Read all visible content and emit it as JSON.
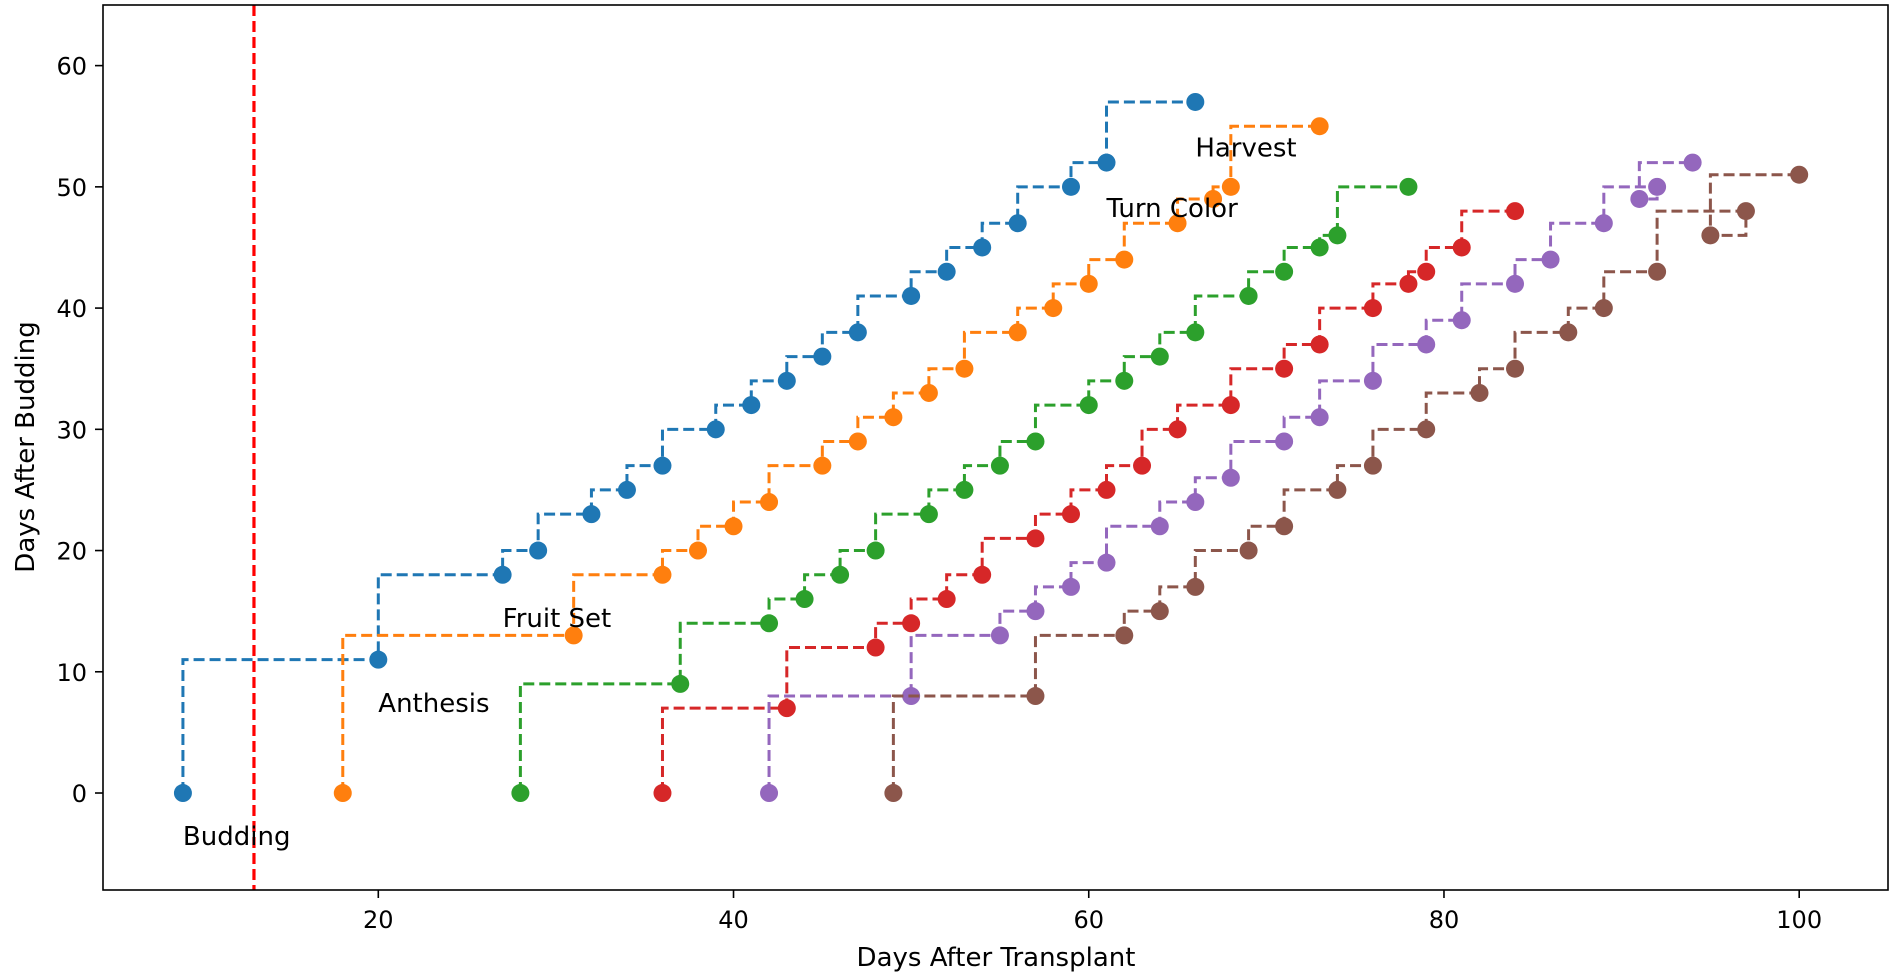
{
  "chart_data": {
    "type": "line",
    "style": "step-post dashed with circle markers",
    "xlabel": "Days After Transplant",
    "ylabel": "Days After Budding",
    "xlim": [
      4.5,
      105
    ],
    "ylim": [
      -8,
      65
    ],
    "xticks": [
      20,
      40,
      60,
      80,
      100
    ],
    "yticks": [
      0,
      10,
      20,
      30,
      40,
      50,
      60
    ],
    "grid": false,
    "legend": "none",
    "vline": {
      "x": 13,
      "color": "#ff0000",
      "style": "dashed"
    },
    "annotations": [
      {
        "text": "Budding",
        "x": 9,
        "y": -4.3
      },
      {
        "text": "Anthesis",
        "x": 20,
        "y": 6.7
      },
      {
        "text": "Fruit Set",
        "x": 27,
        "y": 13.7
      },
      {
        "text": "Turn Color",
        "x": 61,
        "y": 47.5
      },
      {
        "text": "Harvest",
        "x": 66,
        "y": 52.5
      }
    ],
    "series": [
      {
        "color": "#1f77b4",
        "x": [
          9,
          20,
          27,
          29,
          32,
          34,
          36,
          39,
          41,
          43,
          45,
          47,
          50,
          52,
          54,
          56,
          59,
          61,
          66
        ],
        "y": [
          0,
          11,
          18,
          20,
          23,
          25,
          27,
          30,
          32,
          34,
          36,
          38,
          41,
          43,
          45,
          47,
          50,
          52,
          57
        ]
      },
      {
        "color": "#ff7f0e",
        "x": [
          18,
          31,
          36,
          38,
          40,
          42,
          45,
          47,
          49,
          51,
          53,
          56,
          58,
          60,
          62,
          65,
          67,
          68,
          73
        ],
        "y": [
          0,
          13,
          18,
          20,
          22,
          24,
          27,
          29,
          31,
          33,
          35,
          38,
          40,
          42,
          44,
          47,
          49,
          50,
          55
        ]
      },
      {
        "color": "#2ca02c",
        "x": [
          28,
          37,
          42,
          44,
          46,
          48,
          51,
          53,
          55,
          57,
          60,
          62,
          64,
          66,
          69,
          71,
          73,
          74,
          78
        ],
        "y": [
          0,
          9,
          14,
          16,
          18,
          20,
          23,
          25,
          27,
          29,
          32,
          34,
          36,
          38,
          41,
          43,
          45,
          46,
          50
        ]
      },
      {
        "color": "#d62728",
        "x": [
          36,
          43,
          48,
          50,
          52,
          54,
          57,
          59,
          61,
          63,
          65,
          68,
          71,
          73,
          76,
          78,
          79,
          81,
          84
        ],
        "y": [
          0,
          7,
          12,
          14,
          16,
          18,
          21,
          23,
          25,
          27,
          30,
          32,
          35,
          37,
          40,
          42,
          43,
          45,
          48
        ]
      },
      {
        "color": "#9467bd",
        "x": [
          42,
          50,
          55,
          57,
          59,
          61,
          64,
          66,
          68,
          71,
          73,
          76,
          79,
          81,
          84,
          86,
          89,
          92,
          91,
          94
        ],
        "y": [
          0,
          8,
          13,
          15,
          17,
          19,
          22,
          24,
          26,
          29,
          31,
          34,
          37,
          39,
          42,
          44,
          47,
          50,
          49,
          52
        ]
      },
      {
        "color": "#8c564b",
        "x": [
          49,
          57,
          62,
          64,
          66,
          69,
          71,
          74,
          76,
          79,
          82,
          84,
          87,
          89,
          92,
          97,
          95,
          100
        ],
        "y": [
          0,
          8,
          13,
          15,
          17,
          20,
          22,
          25,
          27,
          30,
          33,
          35,
          38,
          40,
          43,
          48,
          46,
          51
        ]
      }
    ]
  }
}
